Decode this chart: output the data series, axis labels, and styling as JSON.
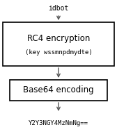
{
  "title_text": "idbot",
  "box1_line1": "RC4 encryption",
  "box1_line2": "(key wssmnpdmydte)",
  "box2_text": "Base64 encoding",
  "output_text": "Y2Y3NGY4MzNmNg==",
  "bg_color": "#ffffff",
  "box_edge_color": "#000000",
  "text_color": "#000000",
  "arrow_color": "#555555",
  "font_size_title": 7,
  "font_size_box1_line1": 8.5,
  "font_size_box1_line2": 6.5,
  "font_size_box2": 8.5,
  "font_size_output": 6.5
}
